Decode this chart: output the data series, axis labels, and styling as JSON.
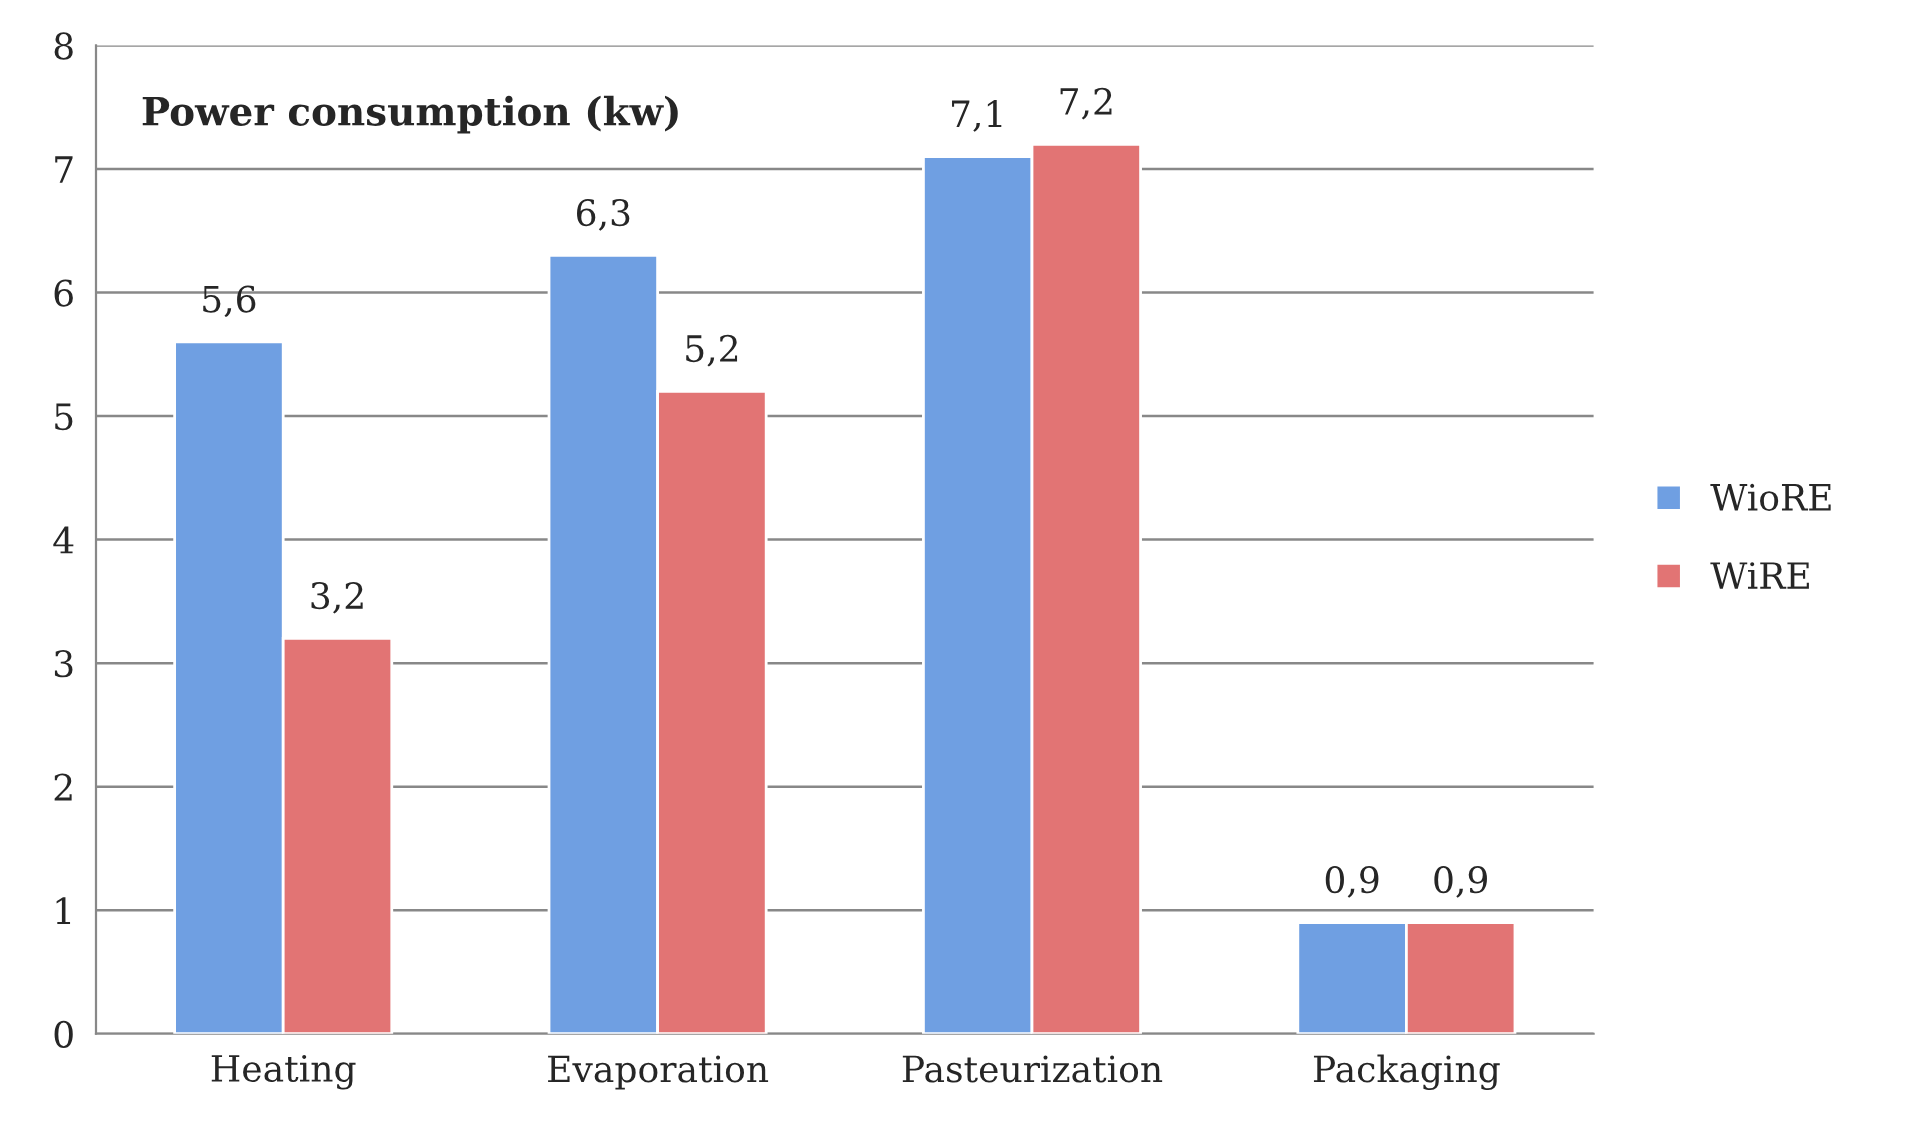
{
  "chart_data": {
    "type": "bar",
    "title": "Power consumption (kw)",
    "categories": [
      "Heating",
      "Evaporation",
      "Pasteurization",
      "Packaging"
    ],
    "series": [
      {
        "name": "WioRE",
        "color": "#6f9fe2",
        "values": [
          5.6,
          6.3,
          7.1,
          0.9
        ],
        "value_labels": [
          "5,6",
          "6,3",
          "7,1",
          "0,9"
        ]
      },
      {
        "name": "WiRE",
        "color": "#e27474",
        "values": [
          3.2,
          5.2,
          7.2,
          0.9
        ],
        "value_labels": [
          "3,2",
          "5,2",
          "7,2",
          "0,9"
        ]
      }
    ],
    "ylim": [
      0,
      8
    ],
    "yticks": [
      0,
      1,
      2,
      3,
      4,
      5,
      6,
      7,
      8
    ],
    "grid": "y",
    "legend": "right"
  }
}
